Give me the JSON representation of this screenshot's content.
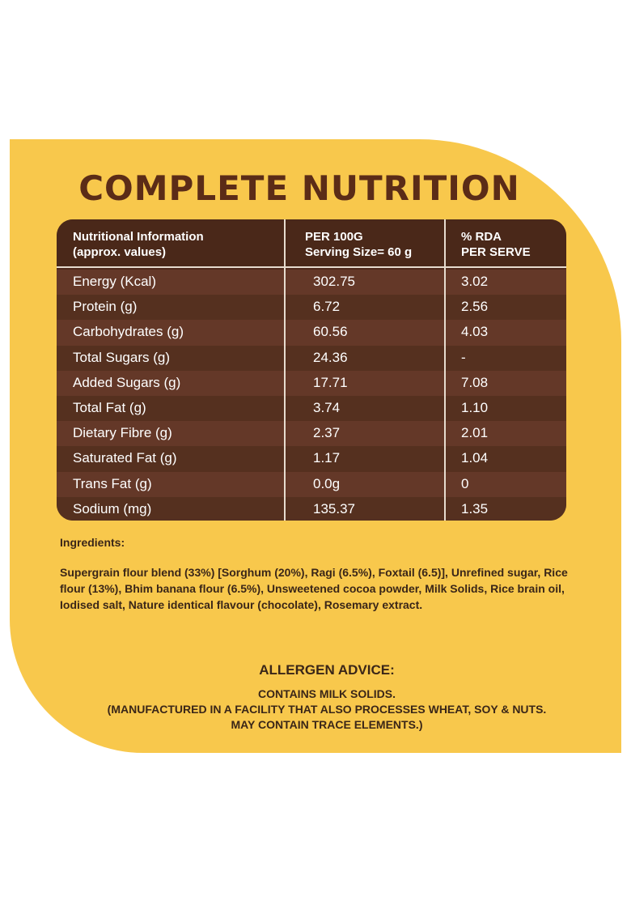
{
  "title": "COMPLETE NUTRITION",
  "table": {
    "headers": [
      [
        "Nutritional Information",
        "(approx. values)"
      ],
      [
        "PER 100G",
        "Serving Size= 60 g"
      ],
      [
        "% RDA",
        "PER SERVE"
      ]
    ],
    "rows": [
      [
        "Energy (Kcal)",
        "302.75",
        "3.02"
      ],
      [
        "Protein (g)",
        "6.72",
        "2.56"
      ],
      [
        "Carbohydrates (g)",
        "60.56",
        "4.03"
      ],
      [
        "Total Sugars (g)",
        "24.36",
        "-"
      ],
      [
        "Added Sugars (g)",
        "17.71",
        "7.08"
      ],
      [
        "Total Fat (g)",
        "3.74",
        "1.10"
      ],
      [
        "Dietary Fibre (g)",
        "2.37",
        "2.01"
      ],
      [
        "Saturated Fat (g)",
        "1.17",
        "1.04"
      ],
      [
        "Trans Fat (g)",
        "0.0g",
        "0"
      ],
      [
        "Sodium (mg)",
        "135.37",
        "1.35"
      ]
    ]
  },
  "ingredients": {
    "title": "Ingredients:",
    "text": "Supergrain flour blend (33%) [Sorghum (20%), Ragi (6.5%), Foxtail (6.5)], Unrefined sugar, Rice flour (13%), Bhim banana flour (6.5%), Unsweetened cocoa powder, Milk Solids, Rice brain oil, Iodised salt, Nature identical flavour (chocolate), Rosemary extract."
  },
  "allergen": {
    "title": "ALLERGEN ADVICE:",
    "lines": [
      "CONTAINS MILK SOLIDS.",
      "(MANUFACTURED IN A FACILITY THAT ALSO PROCESSES WHEAT, SOY & NUTS.",
      "MAY CONTAIN TRACE ELEMENTS.)"
    ]
  },
  "colors": {
    "panel": "#f8c84c",
    "brown": "#4e2a1c",
    "title": "#5b2c17"
  }
}
